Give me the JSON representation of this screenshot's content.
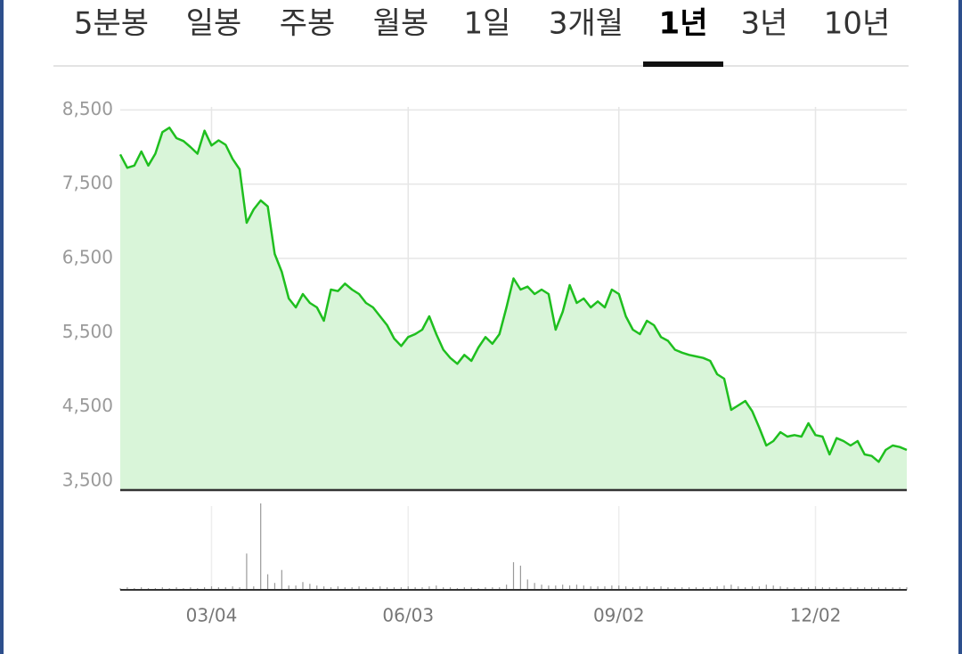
{
  "tabs": [
    "5분봉",
    "일봉",
    "주봉",
    "월봉",
    "1일",
    "3개월",
    "1년",
    "3년",
    "10년"
  ],
  "active_tab": 6,
  "chart_data": [
    {
      "type": "area",
      "color": "#1fbf1f",
      "fill": "#d9f5d9",
      "ylim": [
        3380,
        8780
      ],
      "yticks": [
        {
          "value": 3500,
          "label": "3,500"
        },
        {
          "value": 4500,
          "label": "4,500"
        },
        {
          "value": 5500,
          "label": "5,500"
        },
        {
          "value": 6500,
          "label": "6,500"
        },
        {
          "value": 7500,
          "label": "7,500"
        },
        {
          "value": 8500,
          "label": "8,500"
        }
      ],
      "grid": true,
      "categories": [
        null,
        null,
        null,
        null,
        null,
        null,
        null,
        null,
        null,
        null,
        null,
        null,
        null,
        "03/04",
        null,
        null,
        null,
        null,
        null,
        null,
        null,
        null,
        null,
        null,
        null,
        null,
        null,
        null,
        null,
        null,
        null,
        null,
        null,
        null,
        null,
        null,
        null,
        null,
        null,
        null,
        null,
        "06/03",
        null,
        null,
        null,
        null,
        null,
        null,
        null,
        null,
        null,
        null,
        null,
        null,
        null,
        null,
        null,
        null,
        null,
        null,
        null,
        null,
        null,
        null,
        null,
        null,
        null,
        null,
        null,
        null,
        null,
        "09/02",
        null,
        null,
        null,
        null,
        null,
        null,
        null,
        null,
        null,
        null,
        null,
        null,
        null,
        null,
        null,
        null,
        null,
        null,
        null,
        null,
        null,
        null,
        null,
        null,
        null,
        null,
        null,
        "12/02",
        null,
        null,
        null,
        null,
        null,
        null,
        null,
        null,
        null,
        null,
        null,
        null,
        null
      ],
      "values": [
        7900,
        7720,
        7750,
        7940,
        7750,
        7910,
        8200,
        8260,
        8120,
        8080,
        8000,
        7910,
        8220,
        8020,
        8090,
        8030,
        7840,
        7700,
        6980,
        7160,
        7280,
        7200,
        6560,
        6320,
        5960,
        5840,
        6020,
        5900,
        5840,
        5660,
        6080,
        6060,
        6160,
        6080,
        6020,
        5900,
        5840,
        5720,
        5600,
        5420,
        5320,
        5440,
        5480,
        5540,
        5720,
        5480,
        5270,
        5160,
        5080,
        5200,
        5120,
        5300,
        5440,
        5350,
        5480,
        5840,
        6230,
        6080,
        6120,
        6020,
        6080,
        6020,
        5540,
        5780,
        6140,
        5900,
        5960,
        5840,
        5920,
        5840,
        6080,
        6020,
        5720,
        5540,
        5480,
        5660,
        5600,
        5440,
        5390,
        5270,
        5230,
        5200,
        5180,
        5160,
        5120,
        4940,
        4880,
        4460,
        4520,
        4580,
        4440,
        4220,
        3980,
        4040,
        4160,
        4100,
        4120,
        4100,
        4280,
        4120,
        4100,
        3860,
        4080,
        4040,
        3980,
        4040,
        3860,
        3840,
        3760,
        3920,
        3980,
        3960,
        3920
      ]
    },
    {
      "type": "bar",
      "color": "#9a9a9a",
      "ylim": [
        0,
        100
      ],
      "values": [
        2,
        3,
        2,
        3,
        2,
        2,
        3,
        2,
        3,
        2,
        3,
        2,
        3,
        4,
        3,
        3,
        4,
        3,
        42,
        4,
        100,
        18,
        8,
        23,
        5,
        5,
        9,
        7,
        5,
        4,
        3,
        4,
        3,
        3,
        4,
        3,
        3,
        4,
        3,
        3,
        3,
        4,
        3,
        3,
        4,
        5,
        3,
        3,
        2,
        3,
        3,
        2,
        3,
        3,
        3,
        6,
        32,
        28,
        12,
        8,
        6,
        5,
        5,
        6,
        5,
        6,
        5,
        4,
        4,
        4,
        5,
        5,
        4,
        3,
        4,
        4,
        3,
        4,
        3,
        3,
        3,
        3,
        3,
        3,
        3,
        4,
        5,
        6,
        4,
        3,
        4,
        4,
        6,
        5,
        4,
        3,
        3,
        3,
        3,
        4,
        3,
        3,
        3,
        3,
        3,
        3,
        3,
        3,
        3,
        3,
        3,
        3,
        3
      ]
    }
  ]
}
